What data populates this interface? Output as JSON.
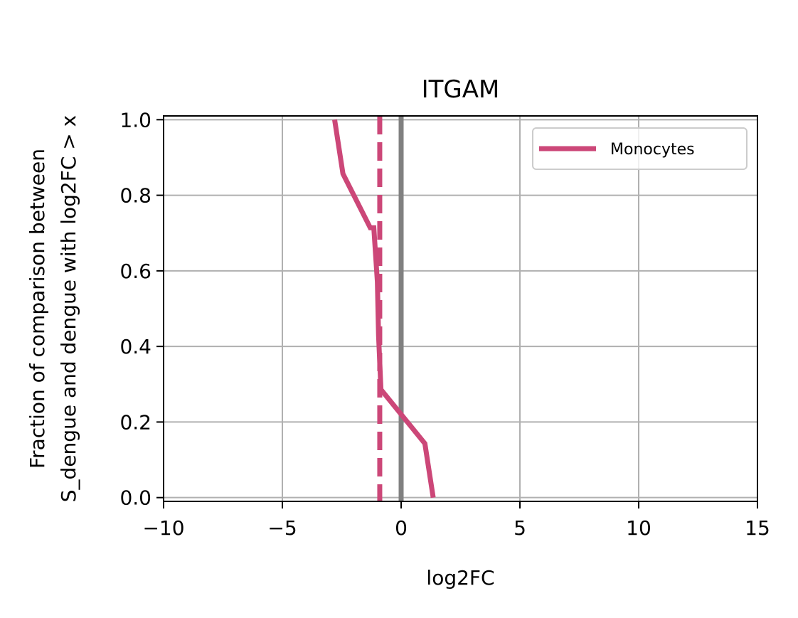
{
  "chart_data": {
    "type": "line",
    "title": "ITGAM",
    "xlabel": "log2FC",
    "ylabel_lines": [
      "Fraction of comparison between",
      "S_dengue and dengue with log2FC > x"
    ],
    "xlim": [
      -10,
      15
    ],
    "ylim": [
      -0.01,
      1.01
    ],
    "xticks": [
      -10,
      -5,
      0,
      5,
      10,
      15
    ],
    "xtick_labels": [
      "−10",
      "−5",
      "0",
      "5",
      "10",
      "15"
    ],
    "yticks": [
      0.0,
      0.2,
      0.4,
      0.6,
      0.8,
      1.0
    ],
    "ytick_labels": [
      "0.0",
      "0.2",
      "0.4",
      "0.6",
      "0.8",
      "1.0"
    ],
    "grid": true,
    "legend_position": "top-right",
    "series": [
      {
        "name": "Monocytes",
        "color": "#cc4778",
        "x": [
          1.35,
          1.0,
          -0.85,
          -0.95,
          -1.0,
          -1.15,
          -1.3,
          -2.45,
          -2.8
        ],
        "y": [
          0.0,
          0.143,
          0.286,
          0.429,
          0.571,
          0.714,
          0.714,
          0.857,
          1.0
        ]
      }
    ],
    "reference_lines": [
      {
        "orientation": "vertical",
        "x": 0,
        "color": "#808080",
        "style": "solid"
      },
      {
        "orientation": "vertical",
        "x": -0.9,
        "color": "#cc4778",
        "style": "dashed"
      }
    ]
  }
}
